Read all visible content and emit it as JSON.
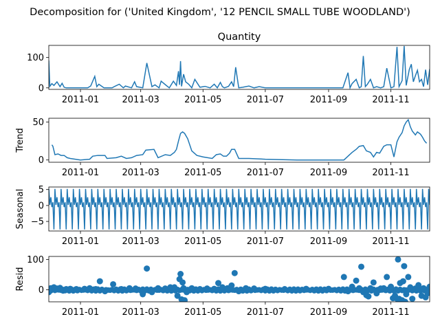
{
  "figure_title": "Decomposition for ('United Kingdom', '12 PENCIL SMALL TUBE WOODLAND')",
  "x_ticks": [
    "2011-01",
    "2011-03",
    "2011-05",
    "2011-07",
    "2011-09",
    "2011-11"
  ],
  "colors": {
    "line": "#1f77b4",
    "axis": "#000000"
  },
  "chart_data": [
    {
      "type": "line",
      "title": "Quantity",
      "ylabel": "",
      "ylim": [
        -5,
        140
      ],
      "yticks": [
        "0",
        "100"
      ],
      "x_range": [
        "2010-12-01",
        "2011-12-09"
      ],
      "x": [
        "2010-12-01",
        "2010-12-02",
        "2010-12-04",
        "2010-12-06",
        "2010-12-09",
        "2010-12-12",
        "2010-12-14",
        "2010-12-16",
        "2010-12-18",
        "2010-12-20",
        "2010-12-22",
        "2010-12-26",
        "2011-01-04",
        "2011-01-08",
        "2011-01-11",
        "2011-01-15",
        "2011-01-17",
        "2011-01-19",
        "2011-01-24",
        "2011-02-01",
        "2011-02-03",
        "2011-02-08",
        "2011-02-12",
        "2011-02-14",
        "2011-02-20",
        "2011-02-23",
        "2011-02-25",
        "2011-03-03",
        "2011-03-07",
        "2011-03-12",
        "2011-03-15",
        "2011-03-19",
        "2011-03-21",
        "2011-03-26",
        "2011-03-29",
        "2011-04-02",
        "2011-04-05",
        "2011-04-07",
        "2011-04-08",
        "2011-04-09",
        "2011-04-10",
        "2011-04-12",
        "2011-04-14",
        "2011-04-17",
        "2011-04-20",
        "2011-04-23",
        "2011-04-28",
        "2011-05-03",
        "2011-05-08",
        "2011-05-12",
        "2011-05-15",
        "2011-05-18",
        "2011-05-20",
        "2011-05-22",
        "2011-05-26",
        "2011-05-29",
        "2011-05-31",
        "2011-06-02",
        "2011-06-05",
        "2011-06-09",
        "2011-06-15",
        "2011-06-20",
        "2011-06-25",
        "2011-07-01",
        "2011-07-15",
        "2011-08-01",
        "2011-08-15",
        "2011-09-01",
        "2011-09-15",
        "2011-09-20",
        "2011-09-22",
        "2011-09-24",
        "2011-09-28",
        "2011-10-01",
        "2011-10-03",
        "2011-10-05",
        "2011-10-07",
        "2011-10-09",
        "2011-10-12",
        "2011-10-15",
        "2011-10-18",
        "2011-10-22",
        "2011-10-25",
        "2011-10-28",
        "2011-11-01",
        "2011-11-04",
        "2011-11-07",
        "2011-11-09",
        "2011-11-12",
        "2011-11-14",
        "2011-11-16",
        "2011-11-19",
        "2011-11-21",
        "2011-11-23",
        "2011-11-25",
        "2011-11-27",
        "2011-11-29",
        "2011-12-01",
        "2011-12-03",
        "2011-12-05",
        "2011-12-07",
        "2011-12-09"
      ],
      "y": [
        90,
        5,
        14,
        8,
        20,
        4,
        15,
        2,
        0,
        0,
        0,
        0,
        0,
        0,
        6,
        38,
        4,
        12,
        0,
        0,
        4,
        12,
        0,
        6,
        0,
        20,
        4,
        0,
        82,
        4,
        10,
        0,
        22,
        8,
        0,
        22,
        8,
        55,
        10,
        88,
        5,
        45,
        20,
        12,
        0,
        28,
        2,
        5,
        0,
        12,
        0,
        18,
        4,
        0,
        5,
        20,
        4,
        68,
        0,
        2,
        6,
        0,
        4,
        0,
        0,
        0,
        0,
        0,
        0,
        50,
        0,
        14,
        28,
        0,
        4,
        105,
        4,
        12,
        28,
        0,
        4,
        0,
        4,
        65,
        0,
        4,
        135,
        4,
        24,
        138,
        8,
        60,
        78,
        20,
        40,
        58,
        20,
        28,
        4,
        60,
        10,
        62
      ]
    },
    {
      "type": "line",
      "title": "",
      "ylabel": "Trend",
      "ylim": [
        -3,
        55
      ],
      "yticks": [
        "0",
        "50"
      ],
      "x_range": [
        "2010-12-01",
        "2011-12-09"
      ],
      "x": [
        "2010-12-04",
        "2010-12-05",
        "2010-12-07",
        "2010-12-10",
        "2010-12-13",
        "2010-12-16",
        "2010-12-19",
        "2010-12-22",
        "2011-01-01",
        "2011-01-10",
        "2011-01-13",
        "2011-01-18",
        "2011-01-25",
        "2011-01-27",
        "2011-02-05",
        "2011-02-10",
        "2011-02-15",
        "2011-02-20",
        "2011-02-25",
        "2011-03-03",
        "2011-03-06",
        "2011-03-14",
        "2011-03-18",
        "2011-03-25",
        "2011-03-30",
        "2011-04-03",
        "2011-04-05",
        "2011-04-07",
        "2011-04-09",
        "2011-04-11",
        "2011-04-13",
        "2011-04-16",
        "2011-04-20",
        "2011-04-25",
        "2011-05-01",
        "2011-05-10",
        "2011-05-14",
        "2011-05-18",
        "2011-05-21",
        "2011-05-24",
        "2011-05-27",
        "2011-05-29",
        "2011-06-01",
        "2011-06-05",
        "2011-06-15",
        "2011-07-01",
        "2011-08-01",
        "2011-09-01",
        "2011-09-16",
        "2011-09-20",
        "2011-09-24",
        "2011-09-28",
        "2011-10-01",
        "2011-10-05",
        "2011-10-08",
        "2011-10-12",
        "2011-10-15",
        "2011-10-18",
        "2011-10-21",
        "2011-10-25",
        "2011-10-28",
        "2011-11-01",
        "2011-11-04",
        "2011-11-07",
        "2011-11-09",
        "2011-11-12",
        "2011-11-14",
        "2011-11-16",
        "2011-11-18",
        "2011-11-20",
        "2011-11-22",
        "2011-11-25",
        "2011-11-27",
        "2011-11-30",
        "2011-12-02",
        "2011-12-04",
        "2011-12-06"
      ],
      "y": [
        20,
        18,
        7,
        8,
        6,
        6,
        3,
        2,
        0,
        1,
        5,
        6,
        6,
        2,
        3,
        5,
        2,
        3,
        6,
        7,
        13,
        14,
        3,
        7,
        6,
        10,
        14,
        25,
        35,
        37,
        35,
        28,
        12,
        6,
        4,
        2,
        7,
        8,
        5,
        5,
        9,
        14,
        14,
        2,
        2,
        1,
        0,
        0,
        0,
        5,
        10,
        14,
        18,
        19,
        12,
        10,
        4,
        10,
        9,
        18,
        20,
        20,
        4,
        24,
        30,
        36,
        45,
        50,
        53,
        44,
        38,
        33,
        37,
        34,
        30,
        25,
        22
      ]
    },
    {
      "type": "line",
      "title": "",
      "ylabel": "Seasonal",
      "ylim": [
        -8,
        5.8
      ],
      "yticks": [
        "−5",
        "0",
        "5"
      ],
      "x_range": [
        "2010-12-01",
        "2011-12-09"
      ],
      "period_days": 6,
      "pattern": [
        5.2,
        0.2,
        2.6,
        -0.5,
        1.0,
        -7.5
      ]
    },
    {
      "type": "scatter",
      "title": "",
      "ylabel": "Resid",
      "ylim": [
        -40,
        110
      ],
      "yticks": [
        "0",
        "100"
      ],
      "x_range": [
        "2010-12-01",
        "2011-12-09"
      ],
      "baseline": 0,
      "x": [
        "2010-12-01",
        "2010-12-03",
        "2010-12-06",
        "2010-12-09",
        "2010-12-12",
        "2010-12-15",
        "2010-12-18",
        "2010-12-22",
        "2010-12-28",
        "2011-01-05",
        "2011-01-10",
        "2011-01-16",
        "2011-01-20",
        "2011-01-25",
        "2011-02-02",
        "2011-02-10",
        "2011-02-18",
        "2011-02-24",
        "2011-03-03",
        "2011-03-07",
        "2011-03-12",
        "2011-03-18",
        "2011-03-25",
        "2011-03-30",
        "2011-04-03",
        "2011-04-06",
        "2011-04-08",
        "2011-04-09",
        "2011-04-10",
        "2011-04-11",
        "2011-04-12",
        "2011-04-13",
        "2011-04-15",
        "2011-04-20",
        "2011-04-28",
        "2011-05-05",
        "2011-05-12",
        "2011-05-16",
        "2011-05-20",
        "2011-05-25",
        "2011-05-29",
        "2011-06-01",
        "2011-06-05",
        "2011-06-12",
        "2011-06-20",
        "2011-07-01",
        "2011-07-20",
        "2011-08-10",
        "2011-09-01",
        "2011-09-16",
        "2011-09-20",
        "2011-09-24",
        "2011-09-28",
        "2011-10-01",
        "2011-10-03",
        "2011-10-05",
        "2011-10-08",
        "2011-10-10",
        "2011-10-12",
        "2011-10-15",
        "2011-10-18",
        "2011-10-22",
        "2011-10-25",
        "2011-10-28",
        "2011-11-01",
        "2011-11-03",
        "2011-11-05",
        "2011-11-07",
        "2011-11-08",
        "2011-11-09",
        "2011-11-10",
        "2011-11-12",
        "2011-11-13",
        "2011-11-14",
        "2011-11-15",
        "2011-11-16",
        "2011-11-18",
        "2011-11-20",
        "2011-11-22",
        "2011-11-25",
        "2011-11-28",
        "2011-12-01",
        "2011-12-03",
        "2011-12-05",
        "2011-12-07",
        "2011-12-09"
      ],
      "y": [
        -8,
        5,
        8,
        4,
        6,
        -3,
        2,
        3,
        2,
        3,
        5,
        2,
        28,
        -5,
        18,
        2,
        5,
        4,
        -15,
        70,
        -8,
        5,
        4,
        8,
        8,
        -20,
        35,
        52,
        -32,
        24,
        5,
        -35,
        -8,
        5,
        2,
        4,
        3,
        22,
        8,
        5,
        14,
        55,
        -5,
        5,
        4,
        3,
        2,
        3,
        3,
        42,
        -5,
        10,
        30,
        5,
        76,
        -8,
        -18,
        -22,
        5,
        24,
        -12,
        4,
        5,
        42,
        10,
        -28,
        -20,
        -30,
        100,
        -30,
        22,
        -35,
        28,
        78,
        -40,
        -15,
        42,
        8,
        -30,
        4,
        15,
        -20,
        5,
        -25,
        -12,
        10
      ]
    }
  ]
}
